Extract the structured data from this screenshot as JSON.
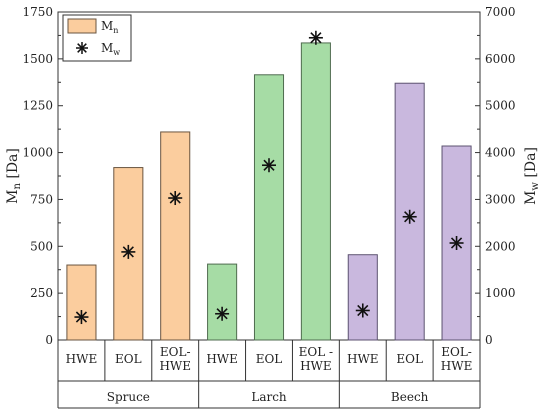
{
  "chart_data": {
    "type": "bar",
    "groups": [
      {
        "name": "Spruce",
        "categories": [
          "HWE",
          "EOL",
          "EOL-\nHWE"
        ]
      },
      {
        "name": "Larch",
        "categories": [
          "HWE",
          "EOL",
          "EOL -\nHWE"
        ]
      },
      {
        "name": "Beech",
        "categories": [
          "HWE",
          "EOL",
          "EOL-\nHWE"
        ]
      }
    ],
    "series": [
      {
        "name": "M_n",
        "label_main": "M",
        "label_sub": "n",
        "axis": "left",
        "kind": "bar",
        "values": [
          400,
          920,
          1110,
          405,
          1415,
          1585,
          455,
          1370,
          1035
        ]
      },
      {
        "name": "M_w",
        "label_main": "M",
        "label_sub": "w",
        "axis": "right",
        "kind": "scatter",
        "marker": "asterisk",
        "values": [
          490,
          1880,
          3030,
          560,
          3730,
          6450,
          630,
          2630,
          2070
        ]
      }
    ],
    "group_colors": {
      "Spruce": {
        "fill": "#fbcd9e",
        "stroke": "#6a5540"
      },
      "Larch": {
        "fill": "#a6dca5",
        "stroke": "#4f6b4f"
      },
      "Beech": {
        "fill": "#c9b8de",
        "stroke": "#5c5270"
      }
    },
    "ylabel_left": {
      "main": "M",
      "sub": "n",
      "unit": " [Da]"
    },
    "ylabel_right": {
      "main": "M",
      "sub": "w",
      "unit": " [Da]"
    },
    "ylim_left": [
      0,
      1750
    ],
    "ylim_right": [
      0,
      7000
    ],
    "yticks_left": [
      0,
      250,
      500,
      750,
      1000,
      1250,
      1500,
      1750
    ],
    "yticks_right": [
      0,
      1000,
      2000,
      3000,
      4000,
      5000,
      6000,
      7000
    ],
    "legend_position": "top-left",
    "grid": false
  }
}
